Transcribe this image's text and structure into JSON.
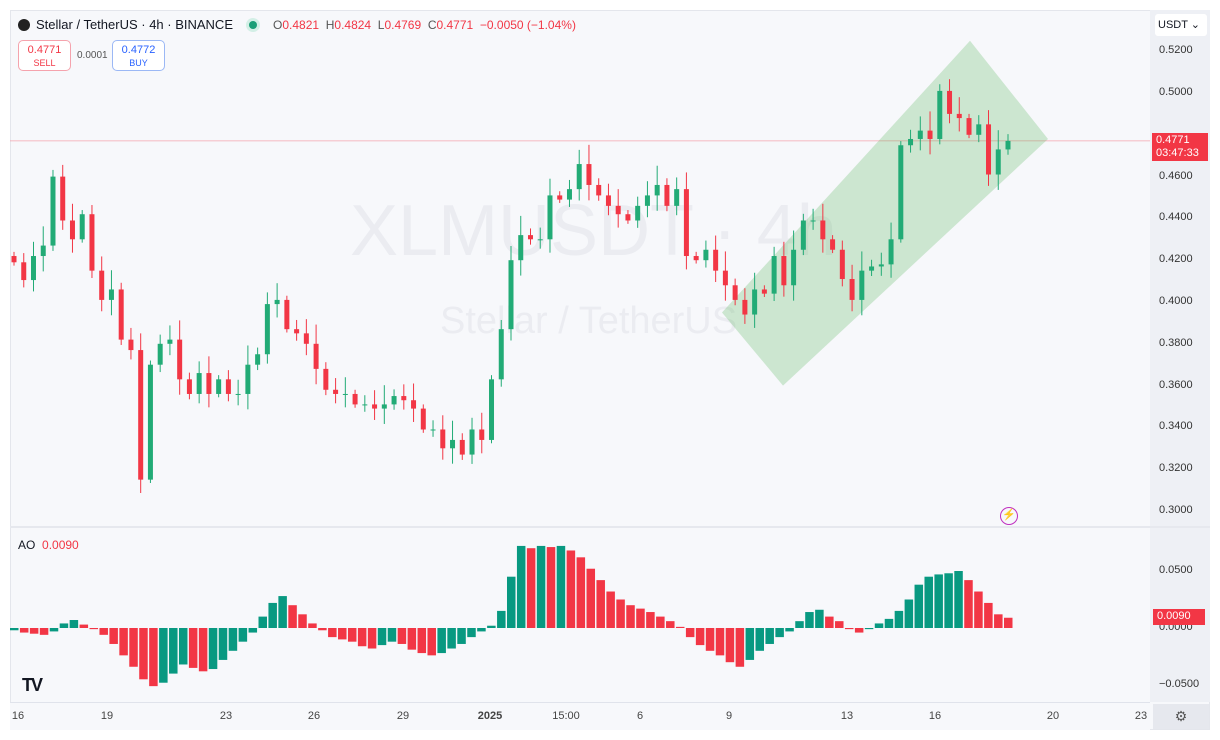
{
  "header": {
    "symbol": "Stellar / TetherUS · 4h · BINANCE",
    "o_label": "O",
    "o": "0.4821",
    "h_label": "H",
    "h": "0.4824",
    "l_label": "L",
    "l": "0.4769",
    "c_label": "C",
    "c": "0.4771",
    "change": "−0.0050 (−1.04%)"
  },
  "trade": {
    "sell_price": "0.4771",
    "sell_label": "SELL",
    "spread": "0.0001",
    "buy_price": "0.4772",
    "buy_label": "BUY"
  },
  "watermark": {
    "big": "XLMUSDT · 4h",
    "small": "Stellar / TetherUS"
  },
  "currency": "USDT ⌄",
  "current_price": {
    "price": "0.4771",
    "countdown": "03:47:33"
  },
  "indicator": {
    "name": "AO",
    "value": "0.0090"
  },
  "colors": {
    "up": "#22ab76",
    "down": "#f23645",
    "ao_up": "#089981",
    "ao_down": "#f23645",
    "channel": "#4caf50"
  },
  "chart_data": [
    {
      "type": "candlestick",
      "title": "Stellar / TetherUS · 4h",
      "ylim": [
        0.29,
        0.53
      ],
      "yticks": [
        "0.5200",
        "0.5000",
        "0.4800",
        "0.4600",
        "0.4400",
        "0.4200",
        "0.4000",
        "0.3800",
        "0.3600",
        "0.3400",
        "0.3200",
        "0.3000"
      ],
      "xticks": [
        "16",
        "19",
        "23",
        "26",
        "29",
        "2025",
        "15:00",
        "6",
        "9",
        "13",
        "16",
        "20",
        "23"
      ],
      "closes": [
        0.419,
        0.4105,
        0.422,
        0.427,
        0.46,
        0.439,
        0.43,
        0.442,
        0.415,
        0.401,
        0.406,
        0.382,
        0.377,
        0.315,
        0.37,
        0.38,
        0.382,
        0.363,
        0.356,
        0.366,
        0.356,
        0.363,
        0.356,
        0.356,
        0.37,
        0.375,
        0.399,
        0.401,
        0.387,
        0.385,
        0.38,
        0.368,
        0.358,
        0.356,
        0.356,
        0.351,
        0.351,
        0.349,
        0.351,
        0.355,
        0.353,
        0.349,
        0.339,
        0.339,
        0.33,
        0.334,
        0.327,
        0.339,
        0.334,
        0.363,
        0.387,
        0.42,
        0.432,
        0.43,
        0.43,
        0.451,
        0.449,
        0.454,
        0.466,
        0.456,
        0.451,
        0.446,
        0.442,
        0.439,
        0.446,
        0.451,
        0.456,
        0.446,
        0.454,
        0.422,
        0.42,
        0.425,
        0.415,
        0.408,
        0.401,
        0.394,
        0.406,
        0.404,
        0.422,
        0.408,
        0.425,
        0.439,
        0.439,
        0.43,
        0.425,
        0.411,
        0.401,
        0.415,
        0.417,
        0.418,
        0.43,
        0.475,
        0.478,
        0.482,
        0.478,
        0.501,
        0.49,
        0.488,
        0.48,
        0.485,
        0.461,
        0.473,
        0.4771
      ],
      "channel": {
        "from_price": [
          0.395,
          0.36
        ],
        "to_price": [
          0.525,
          0.478
        ]
      }
    },
    {
      "type": "bar",
      "title": "AO",
      "ylim": [
        -0.06,
        0.08
      ],
      "yticks": [
        "0.0500",
        "0.0000",
        "−0.0500"
      ],
      "values": [
        -0.002,
        -0.004,
        -0.005,
        -0.006,
        -0.003,
        0.004,
        0.007,
        0.003,
        -0.001,
        -0.006,
        -0.014,
        -0.024,
        -0.034,
        -0.045,
        -0.051,
        -0.048,
        -0.04,
        -0.032,
        -0.035,
        -0.038,
        -0.036,
        -0.028,
        -0.02,
        -0.012,
        -0.004,
        0.01,
        0.022,
        0.028,
        0.02,
        0.012,
        0.004,
        -0.002,
        -0.008,
        -0.01,
        -0.012,
        -0.016,
        -0.018,
        -0.015,
        -0.012,
        -0.014,
        -0.019,
        -0.022,
        -0.024,
        -0.022,
        -0.018,
        -0.014,
        -0.008,
        -0.003,
        0.002,
        0.015,
        0.045,
        0.072,
        0.07,
        0.072,
        0.071,
        0.072,
        0.068,
        0.062,
        0.052,
        0.042,
        0.032,
        0.025,
        0.02,
        0.017,
        0.014,
        0.01,
        0.006,
        0.001,
        -0.008,
        -0.015,
        -0.02,
        -0.024,
        -0.03,
        -0.034,
        -0.028,
        -0.02,
        -0.014,
        -0.008,
        -0.003,
        0.006,
        0.014,
        0.016,
        0.01,
        0.006,
        -0.001,
        -0.004,
        -0.001,
        0.004,
        0.008,
        0.015,
        0.025,
        0.038,
        0.045,
        0.047,
        0.048,
        0.05,
        0.042,
        0.032,
        0.022,
        0.012,
        0.009
      ]
    }
  ]
}
